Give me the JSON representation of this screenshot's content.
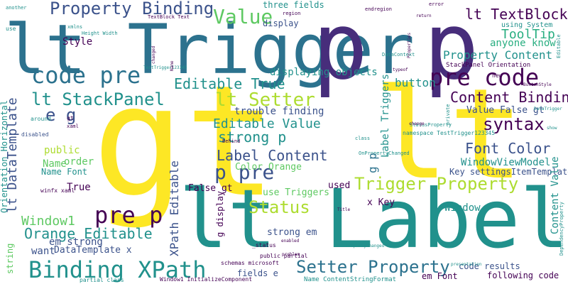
{
  "palette": {
    "purple": "#440154",
    "violet": "#472d7b",
    "indigo": "#3b528b",
    "blue": "#2c728e",
    "teal": "#21918c",
    "green": "#28ae80",
    "lime": "#5ec962",
    "yellowgreen": "#addc30",
    "yellow": "#fde725"
  },
  "words": [
    {
      "text": "gt",
      "color": "yellow",
      "weight": 200
    },
    {
      "text": "lt Label",
      "color": "teal",
      "weight": 96
    },
    {
      "text": "lt Trigger",
      "color": "blue",
      "weight": 80
    },
    {
      "text": "p p",
      "color": "violet",
      "weight": 108
    },
    {
      "text": "lt",
      "color": "yellow",
      "weight": 170
    },
    {
      "text": "code pre",
      "color": "blue",
      "weight": 34
    },
    {
      "text": "pre code",
      "color": "purple",
      "weight": 34
    },
    {
      "text": "Binding XPath",
      "color": "teal",
      "weight": 34
    },
    {
      "text": "pre p",
      "color": "purple",
      "weight": 32
    },
    {
      "text": "p pre",
      "color": "indigo",
      "weight": 28
    },
    {
      "text": "Property Binding",
      "color": "indigo",
      "weight": 24
    },
    {
      "text": "Value",
      "color": "lime",
      "weight": 28
    },
    {
      "text": "lt TextBlock",
      "color": "purple",
      "weight": 20
    },
    {
      "text": "lt StackPanel",
      "color": "teal",
      "weight": 24
    },
    {
      "text": "lt Setter",
      "color": "yellowgreen",
      "weight": 26
    },
    {
      "text": "Editable True",
      "color": "teal",
      "weight": 20
    },
    {
      "text": "Content Binding",
      "color": "purple",
      "weight": 20
    },
    {
      "text": "syntax",
      "color": "purple",
      "weight": 24
    },
    {
      "text": "Editable Value",
      "color": "teal",
      "weight": 18
    },
    {
      "text": "strong p",
      "color": "teal",
      "weight": 20
    },
    {
      "text": "Label Content",
      "color": "indigo",
      "weight": 20
    },
    {
      "text": "Font Color",
      "color": "indigo",
      "weight": 20
    },
    {
      "text": "Trigger Property",
      "color": "yellowgreen",
      "weight": 24
    },
    {
      "text": "Status",
      "color": "yellowgreen",
      "weight": 24
    },
    {
      "text": "Setter Property",
      "color": "blue",
      "weight": 24
    },
    {
      "text": "Orange Editable",
      "color": "teal",
      "weight": 20
    },
    {
      "text": "Window1",
      "color": "lime",
      "weight": 18
    },
    {
      "text": "ToolTip",
      "color": "green",
      "weight": 18
    },
    {
      "text": "Property Content",
      "color": "teal",
      "weight": 16
    },
    {
      "text": "Value False gt",
      "color": "indigo",
      "weight": 13
    },
    {
      "text": "trouble finding",
      "color": "indigo",
      "weight": 14
    },
    {
      "text": "Color Orange",
      "color": "lime",
      "weight": 13
    },
    {
      "text": "WindowViewModel",
      "color": "teal",
      "weight": 14
    },
    {
      "text": "Key settingsItemTemplate",
      "color": "indigo",
      "weight": 12
    },
    {
      "text": "button",
      "color": "teal",
      "weight": 16
    },
    {
      "text": "e g",
      "color": "indigo",
      "weight": 24
    },
    {
      "text": "displaying objects",
      "color": "teal",
      "weight": 14
    },
    {
      "text": "anyone know",
      "color": "green",
      "weight": 14
    },
    {
      "text": "using System",
      "color": "teal",
      "weight": 10
    },
    {
      "text": "StackPanel Orientation",
      "color": "purple",
      "weight": 9
    },
    {
      "text": "three fields",
      "color": "teal",
      "weight": 12
    },
    {
      "text": "display",
      "color": "indigo",
      "weight": 12
    },
    {
      "text": "Style",
      "color": "purple",
      "weight": 14
    },
    {
      "text": "public",
      "color": "yellowgreen",
      "weight": 14
    },
    {
      "text": "order",
      "color": "lime",
      "weight": 14
    },
    {
      "text": "Name",
      "color": "lime",
      "weight": 14
    },
    {
      "text": "Name Font",
      "color": "teal",
      "weight": 12
    },
    {
      "text": "True",
      "color": "purple",
      "weight": 14
    },
    {
      "text": "em strong",
      "color": "indigo",
      "weight": 14
    },
    {
      "text": "want",
      "color": "indigo",
      "weight": 14
    },
    {
      "text": "DataTemplate x",
      "color": "indigo",
      "weight": 13
    },
    {
      "text": "False gt",
      "color": "purple",
      "weight": 13
    },
    {
      "text": "use Triggers",
      "color": "lime",
      "weight": 13
    },
    {
      "text": "used",
      "color": "purple",
      "weight": 13
    },
    {
      "text": "x Key",
      "color": "purple",
      "weight": 13
    },
    {
      "text": "strong em",
      "color": "indigo",
      "weight": 13
    },
    {
      "text": "Window",
      "color": "teal",
      "weight": 14
    },
    {
      "text": "code results",
      "color": "indigo",
      "weight": 12
    },
    {
      "text": "following code",
      "color": "purple",
      "weight": 12
    },
    {
      "text": "fields e",
      "color": "indigo",
      "weight": 12
    },
    {
      "text": "em Font",
      "color": "purple",
      "weight": 12
    },
    {
      "text": "Name ContentStringFormat",
      "color": "teal",
      "weight": 9
    },
    {
      "text": "namespace TestTrigger123345",
      "color": "teal",
      "weight": 8
    },
    {
      "text": "Window1 InitializeComponent",
      "color": "purple",
      "weight": 8
    },
    {
      "text": "partial class",
      "color": "teal",
      "weight": 8
    },
    {
      "text": "schemas microsoft",
      "color": "purple",
      "weight": 8
    },
    {
      "text": "public partial",
      "color": "purple",
      "weight": 8
    },
    {
      "text": "_status",
      "color": "purple",
      "weight": 8
    },
    {
      "text": "TextBlock Text",
      "color": "purple",
      "weight": 7
    },
    {
      "text": "Height Width",
      "color": "teal",
      "weight": 7
    },
    {
      "text": "xmlns",
      "color": "teal",
      "weight": 7
    },
    {
      "text": "another",
      "color": "teal",
      "weight": 7
    },
    {
      "text": "region",
      "color": "purple",
      "weight": 7
    },
    {
      "text": "endregion",
      "color": "purple",
      "weight": 7
    },
    {
      "text": "error",
      "color": "purple",
      "weight": 7
    },
    {
      "text": "DataContext",
      "color": "teal",
      "weight": 7
    },
    {
      "text": "TestTrigger123345",
      "color": "teal",
      "weight": 6
    },
    {
      "text": "typeof",
      "color": "purple",
      "weight": 6
    },
    {
      "text": "return",
      "color": "purple",
      "weight": 6
    },
    {
      "text": "ButtonStyle",
      "color": "purple",
      "weight": 6
    },
    {
      "text": "DataTrigger",
      "color": "teal",
      "weight": 6
    },
    {
      "text": "StatusProperty",
      "color": "teal",
      "weight": 7
    },
    {
      "text": "OnPropertyChanged",
      "color": "teal",
      "weight": 7
    },
    {
      "text": "PropertyChanged",
      "color": "teal",
      "weight": 6
    },
    {
      "text": "presentation",
      "color": "teal",
      "weight": 6
    },
    {
      "text": "enabled",
      "color": "purple",
      "weight": 6
    },
    {
      "text": "problem",
      "color": "purple",
      "weight": 6
    },
    {
      "text": "Behind",
      "color": "purple",
      "weight": 7
    },
    {
      "text": "Title",
      "color": "purple",
      "weight": 6
    },
    {
      "text": "class",
      "color": "teal",
      "weight": 7
    },
    {
      "text": "change",
      "color": "purple",
      "weight": 6
    },
    {
      "text": "show",
      "color": "teal",
      "weight": 6
    },
    {
      "text": "new",
      "color": "purple",
      "weight": 8
    },
    {
      "text": "use",
      "color": "teal",
      "weight": 8
    },
    {
      "text": "disabled",
      "color": "indigo",
      "weight": 8
    },
    {
      "text": "around",
      "color": "teal",
      "weight": 8
    },
    {
      "text": "winfx xaml",
      "color": "purple",
      "weight": 8
    },
    {
      "text": "xaml",
      "color": "purple",
      "weight": 7
    },
    {
      "text": "gt",
      "color": "purple",
      "weight": 8
    },
    {
      "text": "string",
      "color": "lime",
      "weight": 12
    },
    {
      "text": "Label Triggers",
      "color": "teal",
      "weight": 14
    },
    {
      "text": "lt DataTemplate",
      "color": "indigo",
      "weight": 18
    },
    {
      "text": "XPath Editable",
      "color": "indigo",
      "weight": 16
    },
    {
      "text": "Orientation Horizontal",
      "color": "teal",
      "weight": 12
    },
    {
      "text": "Content Value",
      "color": "teal",
      "weight": 14
    },
    {
      "text": "g p",
      "color": "blue",
      "weight": 16
    },
    {
      "text": "g display",
      "color": "purple",
      "weight": 12
    },
    {
      "text": "DependencyProperty",
      "color": "teal",
      "weight": 7
    },
    {
      "text": "Editable",
      "color": "teal",
      "weight": 7
    },
    {
      "text": "private",
      "color": "teal",
      "weight": 7
    },
    {
      "text": "changed",
      "color": "purple",
      "weight": 6
    },
    {
      "text": "Name",
      "color": "purple",
      "weight": 6
    },
    {
      "text": "Properties",
      "color": "purple",
      "weight": 6
    }
  ]
}
